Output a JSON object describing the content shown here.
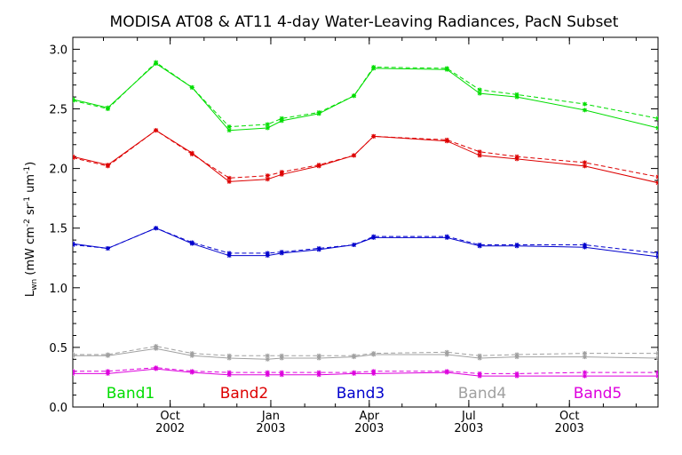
{
  "chart_data": {
    "type": "line",
    "title": "MODISA AT08 & AT11 4-day Water-Leaving Radiances, PacN Subset",
    "ylabel": {
      "prefix": "L",
      "sub": "wn",
      "units": " (mW cm",
      "units2": " sr",
      "units3": " um",
      "close": ")",
      "exp2": "-2",
      "exp1": "-1"
    },
    "ylim": [
      0.0,
      3.1
    ],
    "yticks": [
      "0.0",
      "0.5",
      "1.0",
      "1.5",
      "2.0",
      "2.5",
      "3.0"
    ],
    "x_start": "2002-07-04",
    "x_end": "2003-12-21",
    "x_ticks": [
      {
        "date": "2002-10-01",
        "month": "Oct",
        "year": "2002"
      },
      {
        "date": "2003-01-01",
        "month": "Jan",
        "year": "2003"
      },
      {
        "date": "2003-04-01",
        "month": "Apr",
        "year": "2003"
      },
      {
        "date": "2003-07-01",
        "month": "Jul",
        "year": "2003"
      },
      {
        "date": "2003-10-01",
        "month": "Oct",
        "year": "2003"
      }
    ],
    "dates": [
      "2002-07-04",
      "2002-08-05",
      "2002-09-18",
      "2002-10-21",
      "2002-11-24",
      "2002-12-29",
      "2003-01-11",
      "2003-02-14",
      "2003-03-18",
      "2003-04-05",
      "2003-06-11",
      "2003-07-11",
      "2003-08-14",
      "2003-10-15",
      "2003-12-21"
    ],
    "series": [
      {
        "name": "Band1",
        "color": "#00dd00",
        "values": [
          2.58,
          2.51,
          2.88,
          2.68,
          2.32,
          2.34,
          2.4,
          2.46,
          2.61,
          2.84,
          2.83,
          2.63,
          2.6,
          2.49,
          2.34
        ],
        "values_2": [
          2.57,
          2.5,
          2.89,
          2.68,
          2.35,
          2.37,
          2.42,
          2.47,
          2.61,
          2.85,
          2.84,
          2.66,
          2.62,
          2.54,
          2.42
        ]
      },
      {
        "name": "Band2",
        "color": "#dd0000",
        "values": [
          2.1,
          2.03,
          2.32,
          2.13,
          1.89,
          1.91,
          1.95,
          2.02,
          2.11,
          2.27,
          2.23,
          2.11,
          2.08,
          2.02,
          1.88
        ],
        "values_2": [
          2.09,
          2.02,
          2.32,
          2.12,
          1.92,
          1.94,
          1.97,
          2.03,
          2.11,
          2.27,
          2.24,
          2.14,
          2.1,
          2.05,
          1.93
        ]
      },
      {
        "name": "Band3",
        "color": "#0000cc",
        "values": [
          1.37,
          1.33,
          1.5,
          1.37,
          1.27,
          1.27,
          1.29,
          1.32,
          1.36,
          1.42,
          1.42,
          1.35,
          1.35,
          1.34,
          1.26
        ],
        "values_2": [
          1.36,
          1.33,
          1.5,
          1.38,
          1.29,
          1.29,
          1.3,
          1.33,
          1.36,
          1.43,
          1.43,
          1.36,
          1.36,
          1.36,
          1.29
        ]
      },
      {
        "name": "Band4",
        "color": "#a0a0a0",
        "values": [
          0.43,
          0.43,
          0.49,
          0.43,
          0.41,
          0.4,
          0.41,
          0.41,
          0.42,
          0.44,
          0.44,
          0.41,
          0.42,
          0.42,
          0.41
        ],
        "values_2": [
          0.44,
          0.44,
          0.51,
          0.45,
          0.43,
          0.43,
          0.43,
          0.43,
          0.43,
          0.45,
          0.46,
          0.43,
          0.44,
          0.45,
          0.45
        ]
      },
      {
        "name": "Band5",
        "color": "#dd00dd",
        "values": [
          0.28,
          0.28,
          0.32,
          0.29,
          0.27,
          0.27,
          0.27,
          0.27,
          0.28,
          0.28,
          0.29,
          0.26,
          0.26,
          0.26,
          0.26
        ],
        "values_2": [
          0.3,
          0.3,
          0.33,
          0.3,
          0.29,
          0.29,
          0.29,
          0.29,
          0.29,
          0.3,
          0.3,
          0.28,
          0.28,
          0.29,
          0.29
        ]
      }
    ]
  }
}
